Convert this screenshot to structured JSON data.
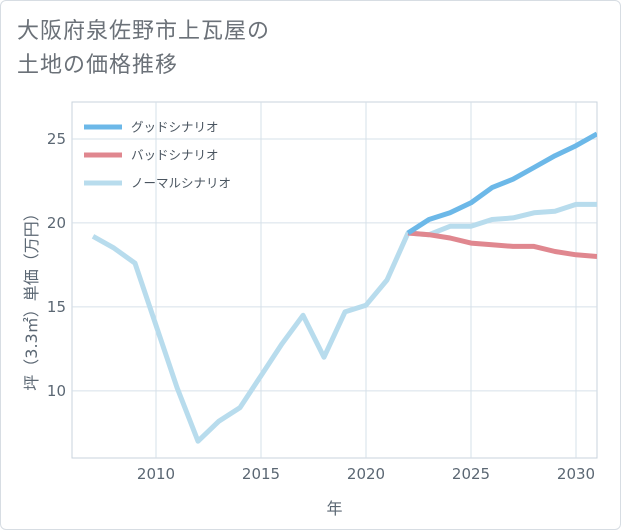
{
  "title_lines": [
    "大阪府泉佐野市上瓦屋の",
    "土地の価格推移"
  ],
  "chart_data": {
    "type": "line",
    "xlabel": "年",
    "ylabel": "坪（3.3㎡）単価（万円）",
    "xlim": [
      2006,
      2031
    ],
    "ylim": [
      6,
      27.2
    ],
    "xticks": [
      2010,
      2015,
      2020,
      2025,
      2030
    ],
    "yticks": [
      10,
      15,
      20,
      25
    ],
    "grid": true,
    "legend_position": "top-left",
    "series": [
      {
        "name": "グッドシナリオ",
        "color": "#6cb8e8",
        "x": [
          2022,
          2023,
          2024,
          2025,
          2026,
          2027,
          2028,
          2029,
          2030,
          2031
        ],
        "y": [
          19.4,
          20.2,
          20.6,
          21.2,
          22.1,
          22.6,
          23.3,
          24.0,
          24.6,
          25.3
        ]
      },
      {
        "name": "バッドシナリオ",
        "color": "#e0878f",
        "x": [
          2022,
          2023,
          2024,
          2025,
          2026,
          2027,
          2028,
          2029,
          2030,
          2031
        ],
        "y": [
          19.4,
          19.3,
          19.1,
          18.8,
          18.7,
          18.6,
          18.6,
          18.3,
          18.1,
          18.0
        ]
      },
      {
        "name": "ノーマルシナリオ",
        "color": "#b8dced",
        "x": [
          2007,
          2008,
          2009,
          2010,
          2011,
          2012,
          2013,
          2014,
          2015,
          2016,
          2017,
          2018,
          2019,
          2020,
          2021,
          2022,
          2023,
          2024,
          2025,
          2026,
          2027,
          2028,
          2029,
          2030,
          2031
        ],
        "y": [
          19.2,
          18.5,
          17.6,
          13.9,
          10.2,
          7.0,
          8.2,
          9.0,
          10.9,
          12.8,
          14.5,
          12.0,
          14.7,
          15.1,
          16.6,
          19.4,
          19.3,
          19.8,
          19.8,
          20.2,
          20.3,
          20.6,
          20.7,
          21.1,
          21.1
        ]
      }
    ]
  }
}
